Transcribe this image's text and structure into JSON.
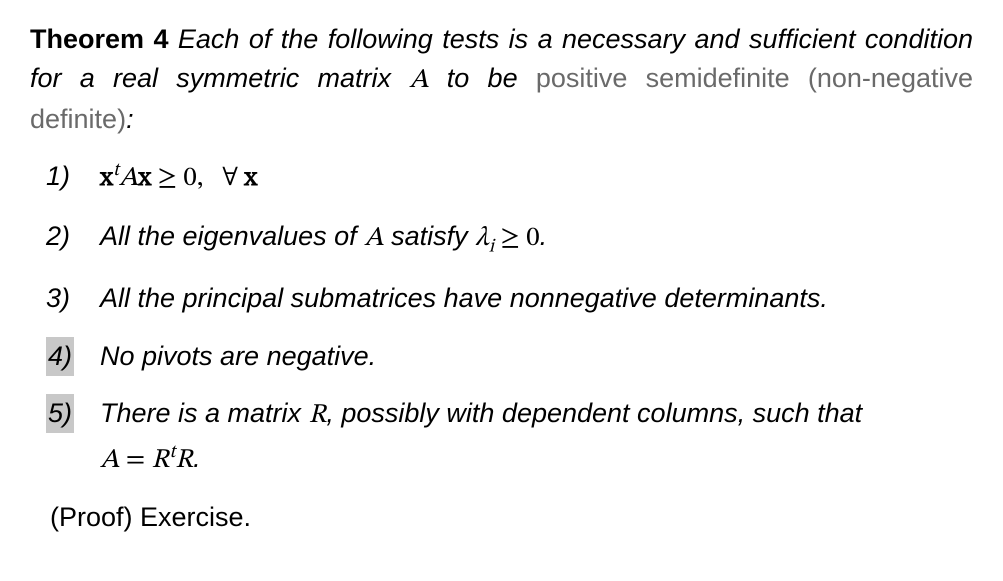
{
  "theorem": {
    "label": "Theorem 4",
    "intro_part1": "Each of the following tests is a necessary and sufficient condition for a real symmetric matrix ",
    "intro_A": "A",
    "intro_part2": " to be ",
    "accent_text": "positive semidefinite (non-negative definite)",
    "intro_end": ":"
  },
  "items": [
    {
      "num": "1)",
      "highlight": false,
      "kind": "math1"
    },
    {
      "num": "2)",
      "highlight": false,
      "kind": "eigen",
      "text_before": "All the eigenvalues of ",
      "A": "A",
      "text_mid": " satisfy ",
      "lambda": "λ",
      "sub": "i",
      "rel": " ≥ 0",
      "end": "."
    },
    {
      "num": "3)",
      "highlight": false,
      "kind": "plain",
      "text": "All the principal submatrices have nonnegative determinants."
    },
    {
      "num": "4)",
      "highlight": true,
      "kind": "plain",
      "text": "No pivots are negative."
    },
    {
      "num": "5)",
      "highlight": true,
      "kind": "factor",
      "text_before": "There is a matrix ",
      "R": "R",
      "text_mid": ", possibly with dependent columns, such that ",
      "eq_lhs_A": "A",
      "eq_eq": " = ",
      "eq_R1": "R",
      "eq_sup": "t",
      "eq_R2": "R",
      "end": "."
    }
  ],
  "proof": "(Proof) Exercise.",
  "colors": {
    "text": "#000000",
    "accent": "#6a6a6a",
    "highlight_bg": "#c8c8c8",
    "background": "#ffffff"
  }
}
